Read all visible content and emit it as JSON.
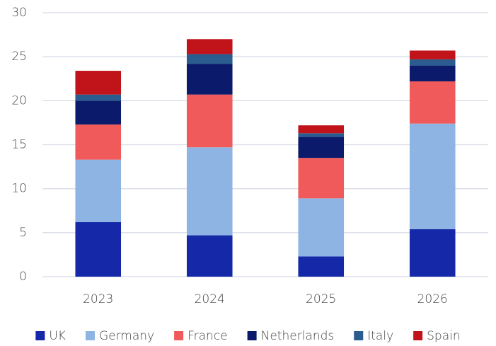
{
  "chart_data": {
    "type": "stacked_bar",
    "categories": [
      "2023",
      "2024",
      "2025",
      "2026"
    ],
    "series": [
      {
        "name": "UK",
        "color": "#1428a8",
        "values": [
          6.2,
          4.7,
          2.3,
          5.4
        ]
      },
      {
        "name": "Germany",
        "color": "#8db4e2",
        "values": [
          7.1,
          10.0,
          6.6,
          12.0
        ]
      },
      {
        "name": "France",
        "color": "#f05a5a",
        "values": [
          4.0,
          6.0,
          4.6,
          4.8
        ]
      },
      {
        "name": "Netherlands",
        "color": "#0b1a6b",
        "values": [
          2.7,
          3.5,
          2.4,
          1.8
        ]
      },
      {
        "name": "Italy",
        "color": "#2a5c8f",
        "values": [
          0.7,
          1.1,
          0.4,
          0.7
        ]
      },
      {
        "name": "Spain",
        "color": "#c0141a",
        "values": [
          2.7,
          1.7,
          0.9,
          1.0
        ]
      }
    ],
    "ylim": [
      0,
      30
    ],
    "yticks": [
      0,
      5,
      10,
      15,
      20,
      25,
      30
    ],
    "grid": true,
    "legend": "bottom"
  }
}
